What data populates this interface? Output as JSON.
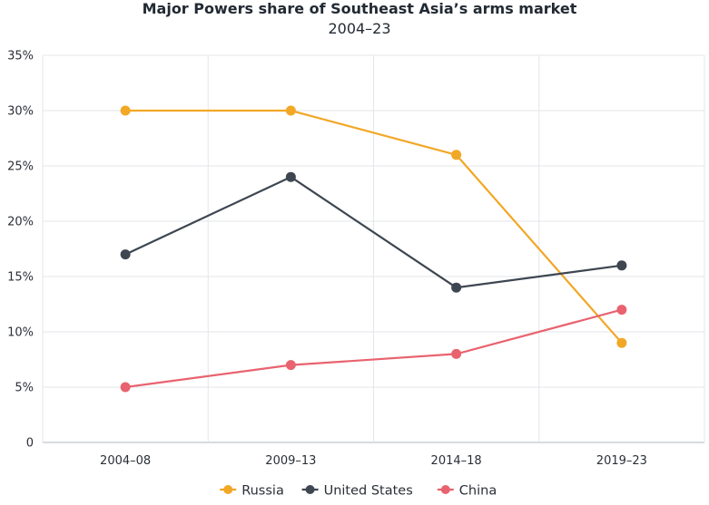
{
  "chart_data": {
    "type": "line",
    "title": "Major Powers share of Southeast Asia’s arms market",
    "subtitle": "2004–23",
    "xlabel": "",
    "ylabel": "",
    "categories": [
      "2004–08",
      "2009–13",
      "2014–18",
      "2019–23"
    ],
    "y_ticks": [
      "0",
      "5%",
      "10%",
      "15%",
      "20%",
      "25%",
      "30%",
      "35%"
    ],
    "ylim": [
      0,
      35
    ],
    "grid": true,
    "legend_position": "bottom-center",
    "series": [
      {
        "name": "Russia",
        "color": "#f2a726",
        "values": [
          30,
          30,
          26,
          9
        ]
      },
      {
        "name": "United States",
        "color": "#3d4651",
        "values": [
          17,
          24,
          14,
          16
        ]
      },
      {
        "name": "China",
        "color": "#e8636f",
        "values": [
          5,
          7,
          8,
          12
        ]
      }
    ]
  }
}
